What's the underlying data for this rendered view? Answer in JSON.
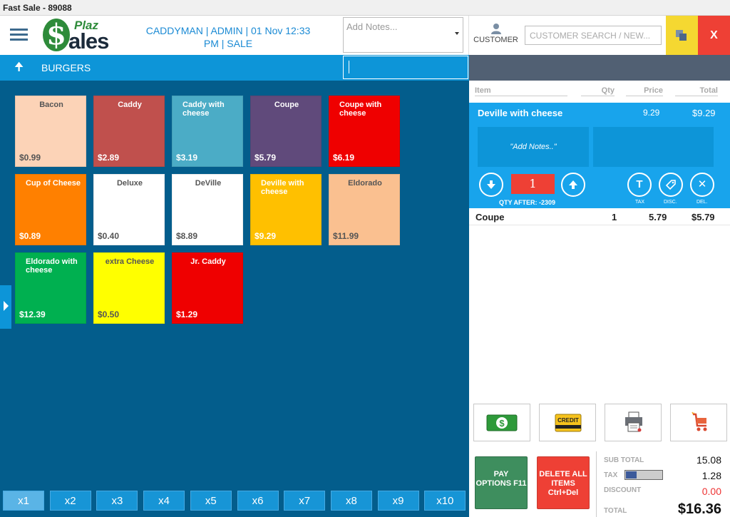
{
  "window": {
    "title": "Fast Sale - 89088"
  },
  "header": {
    "logo": {
      "mark": "$",
      "word1": "Plaz",
      "word2": "ales"
    },
    "session_line1": "CADDYMAN  |  ADMIN  |  01 Nov 12:33",
    "session_line2": "PM  |  SALE",
    "notes_placeholder": "Add Notes...",
    "customer_label": "CUSTOMER",
    "customer_search_placeholder": "CUSTOMER SEARCH / NEW...",
    "close_label": "X"
  },
  "category": {
    "name": "BURGERS",
    "up_icon": "up-arrow-icon"
  },
  "products": [
    {
      "name": "Bacon",
      "price": "$0.99",
      "bg": "#fcd3b7",
      "dark": true,
      "center": true
    },
    {
      "name": "Caddy",
      "price": "$2.89",
      "bg": "#c0504d",
      "dark": false,
      "center": true
    },
    {
      "name": "Caddy with cheese",
      "price": "$3.19",
      "bg": "#4bacc6",
      "dark": false,
      "center": false
    },
    {
      "name": "Coupe",
      "price": "$5.79",
      "bg": "#604a7b",
      "dark": false,
      "center": true
    },
    {
      "name": "Coupe with cheese",
      "price": "$6.19",
      "bg": "#ef0000",
      "dark": false,
      "center": false
    },
    {
      "name": "Cup of Cheese",
      "price": "$0.89",
      "bg": "#ff8000",
      "dark": false,
      "center": false
    },
    {
      "name": "Deluxe",
      "price": "$0.40",
      "bg": "#ffffff",
      "dark": true,
      "center": true
    },
    {
      "name": "DeVille",
      "price": "$8.89",
      "bg": "#ffffff",
      "dark": true,
      "center": true
    },
    {
      "name": "Deville with cheese",
      "price": "$9.29",
      "bg": "#ffc000",
      "dark": false,
      "center": false
    },
    {
      "name": "Eldorado",
      "price": "$11.99",
      "bg": "#fac090",
      "dark": true,
      "center": true
    },
    {
      "name": "Eldorado with cheese",
      "price": "$12.39",
      "bg": "#00b050",
      "dark": false,
      "center": false
    },
    {
      "name": "extra Cheese",
      "price": "$0.50",
      "bg": "#ffff00",
      "dark": true,
      "center": true
    },
    {
      "name": "Jr. Caddy",
      "price": "$1.29",
      "bg": "#ef0000",
      "dark": false,
      "center": true
    }
  ],
  "multipliers": [
    "x1",
    "x2",
    "x3",
    "x4",
    "x5",
    "x6",
    "x7",
    "x8",
    "x9",
    "x10"
  ],
  "cart": {
    "columns": {
      "item": "Item",
      "qty": "Qty",
      "price": "Price",
      "total": "Total"
    },
    "selected": {
      "name": "Deville with cheese",
      "price": "9.29",
      "total": "$9.29",
      "notes_label": "\"Add Notes..\"",
      "qty": "1",
      "qty_after": "QTY AFTER: -2309",
      "tax_label": "TAX",
      "disc_label": "DISC.",
      "del_label": "DEL."
    },
    "items": [
      {
        "name": "Coupe",
        "qty": "1",
        "price": "5.79",
        "total": "$5.79"
      }
    ]
  },
  "payment": {
    "credit_label": "CREDIT"
  },
  "actions": {
    "pay_options": "PAY OPTIONS F11",
    "delete_all": "DELETE ALL ITEMS Ctrl+Del"
  },
  "totals": {
    "subtotal_label": "SUB TOTAL",
    "subtotal": "15.08",
    "tax_label": "TAX",
    "tax": "1.28",
    "tax_bar_fill": 0.28,
    "discount_label": "DISCOUNT",
    "discount": "0.00",
    "total_label": "TOTAL",
    "total": "$16.36"
  },
  "colors": {
    "accent": "#0d95d8",
    "panel": "#035d8c",
    "danger": "#ee4035",
    "pay_green": "#3e8e5e"
  }
}
